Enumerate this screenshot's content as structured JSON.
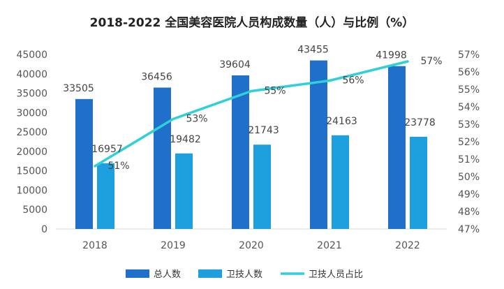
{
  "chart_data": {
    "type": "bar",
    "title": "2018-2022 全国美容医院人员构成数量（人）与比例（%）",
    "categories": [
      "2018",
      "2019",
      "2020",
      "2021",
      "2022"
    ],
    "series": [
      {
        "name": "总人数",
        "type": "bar",
        "axis": "left",
        "values": [
          33505,
          36456,
          39604,
          43455,
          41998
        ],
        "labels": [
          "33505",
          "36456",
          "39604",
          "43455",
          "41998"
        ],
        "color": "#1f6fcb"
      },
      {
        "name": "卫技人数",
        "type": "bar",
        "axis": "left",
        "values": [
          16957,
          19482,
          21743,
          24163,
          23778
        ],
        "labels": [
          "16957",
          "19482",
          "21743",
          "24163",
          "23778"
        ],
        "color": "#1ea0df"
      },
      {
        "name": "卫技人员占比",
        "type": "line",
        "axis": "right",
        "values": [
          50.6,
          53.3,
          54.9,
          55.5,
          56.6
        ],
        "labels": [
          "51%",
          "53%",
          "55%",
          "56%",
          "57%"
        ],
        "color": "#2fd0d8"
      }
    ],
    "y_left": {
      "min": 0,
      "max": 45000,
      "step": 5000,
      "ticks": [
        "0",
        "5000",
        "10000",
        "15000",
        "20000",
        "25000",
        "30000",
        "35000",
        "40000",
        "45000"
      ]
    },
    "y_right": {
      "min": 47,
      "max": 57,
      "step": 1,
      "ticks": [
        "47%",
        "48%",
        "49%",
        "50%",
        "51%",
        "52%",
        "53%",
        "54%",
        "55%",
        "56%",
        "57%"
      ]
    },
    "grid": false,
    "legend_position": "bottom"
  }
}
